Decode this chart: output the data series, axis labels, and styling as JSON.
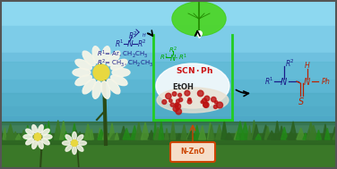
{
  "figsize": [
    3.76,
    1.89
  ],
  "dpi": 100,
  "sky_colors": [
    "#8dd8f0",
    "#7acce8",
    "#6bbedd",
    "#5ab8d8",
    "#4aaac8"
  ],
  "water_color": "#5ab8d0",
  "grass_dark": "#2a6020",
  "grass_mid": "#3a7828",
  "grass_light": "#4a9030",
  "flower_petal": "#f5f5e8",
  "flower_center": "#e8d840",
  "stem_color": "#2a4a15",
  "beaker_color": "#22cc22",
  "beaker_fill": "#e8f4e8",
  "beaker_white": "#f0f0f0",
  "red_particles": "#bb1111",
  "scn_color": "#cc1111",
  "etoh_color": "#222222",
  "formula_blue": "#1a1a88",
  "formula_green": "#00aa00",
  "product_blue": "#1a1a88",
  "product_red": "#bb2200",
  "catalyst_edge": "#cc4400",
  "catalyst_face": "#f5ddc8",
  "catalyst_text": "#cc4400",
  "leaf_color": "#33cc11",
  "leaf_dark": "#229900",
  "arrow_color": "#111111",
  "border_color": "#555555",
  "np_seed": 42
}
